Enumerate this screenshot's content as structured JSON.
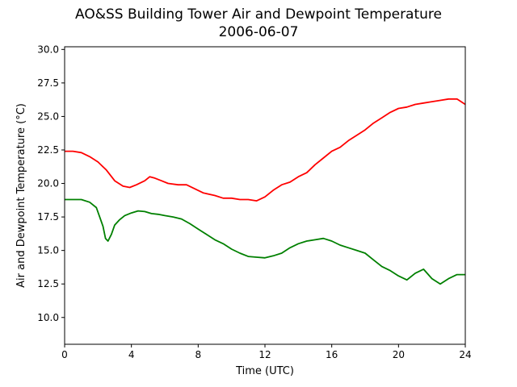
{
  "chart_data": {
    "type": "line",
    "title": "AO&SS Building Tower Air and Dewpoint Temperature",
    "subtitle": "2006-06-07",
    "xlabel": "Time (UTC)",
    "ylabel": "Air and Dewpoint Temperature (°C)",
    "xlim": [
      0,
      24
    ],
    "ylim": [
      8.0,
      30.2
    ],
    "xticks": [
      0,
      4,
      8,
      12,
      16,
      20,
      24
    ],
    "yticks": [
      10.0,
      12.5,
      15.0,
      17.5,
      20.0,
      22.5,
      25.0,
      27.5,
      30.0
    ],
    "grid": false,
    "series": [
      {
        "color": "#ff0000",
        "x": [
          0,
          0.5,
          1,
          1.5,
          2,
          2.5,
          3,
          3.5,
          3.9,
          4.3,
          4.8,
          5.1,
          5.4,
          5.8,
          6.2,
          6.8,
          7.3,
          7.8,
          8.3,
          9,
          9.5,
          10,
          10.5,
          11,
          11.5,
          12,
          12.5,
          13,
          13.5,
          14,
          14.5,
          15,
          15.5,
          16,
          16.5,
          17,
          17.5,
          18,
          18.5,
          19,
          19.5,
          20,
          20.5,
          21,
          21.5,
          22,
          22.5,
          23,
          23.5,
          24
        ],
        "y": [
          22.4,
          22.4,
          22.3,
          22.0,
          21.6,
          21.0,
          20.2,
          19.8,
          19.7,
          19.9,
          20.2,
          20.5,
          20.4,
          20.2,
          20.0,
          19.9,
          19.9,
          19.6,
          19.3,
          19.1,
          18.9,
          18.9,
          18.8,
          18.8,
          18.7,
          19.0,
          19.5,
          19.9,
          20.1,
          20.5,
          20.8,
          21.4,
          21.9,
          22.4,
          22.7,
          23.2,
          23.6,
          24.0,
          24.5,
          24.9,
          25.3,
          25.6,
          25.7,
          25.9,
          26.0,
          26.1,
          26.2,
          26.3,
          26.3,
          25.9
        ]
      },
      {
        "color": "#008000",
        "x": [
          0,
          0.5,
          1,
          1.5,
          1.9,
          2.1,
          2.3,
          2.45,
          2.6,
          2.8,
          3,
          3.3,
          3.6,
          4,
          4.4,
          4.8,
          5.2,
          5.6,
          6,
          6.5,
          7,
          7.5,
          8,
          8.5,
          9,
          9.5,
          10,
          10.5,
          11,
          11.5,
          12,
          12.5,
          13,
          13.5,
          14,
          14.5,
          15,
          15.5,
          16,
          16.5,
          17,
          17.5,
          18,
          18.5,
          19,
          19.5,
          20,
          20.5,
          21,
          21.5,
          22,
          22.5,
          23,
          23.5,
          24
        ],
        "y": [
          18.8,
          18.8,
          18.8,
          18.6,
          18.2,
          17.5,
          16.8,
          15.9,
          15.7,
          16.2,
          16.9,
          17.3,
          17.6,
          17.8,
          17.95,
          17.9,
          17.75,
          17.7,
          17.6,
          17.5,
          17.35,
          17.0,
          16.6,
          16.2,
          15.8,
          15.5,
          15.1,
          14.8,
          14.55,
          14.5,
          14.45,
          14.6,
          14.8,
          15.2,
          15.5,
          15.7,
          15.8,
          15.9,
          15.7,
          15.4,
          15.2,
          15.0,
          14.8,
          14.3,
          13.8,
          13.5,
          13.1,
          12.8,
          13.3,
          13.6,
          12.9,
          12.5,
          12.9,
          13.2,
          13.2
        ]
      }
    ]
  }
}
